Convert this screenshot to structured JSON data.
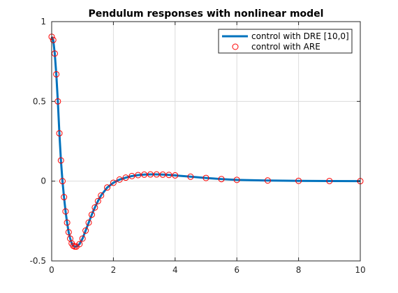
{
  "chart_data": {
    "type": "line",
    "title": "Pendulum responses with nonlinear model",
    "xlabel": "",
    "ylabel": "",
    "xlim": [
      0,
      10
    ],
    "ylim": [
      -0.5,
      1
    ],
    "xticks": [
      0,
      2,
      4,
      6,
      8,
      10
    ],
    "xtick_labels": [
      "0",
      "2",
      "4",
      "6",
      "8",
      "10"
    ],
    "yticks": [
      -0.5,
      0,
      0.5,
      1
    ],
    "ytick_labels": [
      "-0.5",
      "0",
      "0.5",
      "1"
    ],
    "grid": true,
    "legend_position": "top-right",
    "series": [
      {
        "name": "control with DRE [10,0]",
        "style": "line",
        "color": "#0072BD",
        "x": [
          0,
          0.05,
          0.1,
          0.15,
          0.2,
          0.25,
          0.3,
          0.35,
          0.4,
          0.45,
          0.5,
          0.55,
          0.6,
          0.65,
          0.7,
          0.75,
          0.8,
          0.9,
          1.0,
          1.1,
          1.2,
          1.3,
          1.4,
          1.5,
          1.6,
          1.8,
          2.0,
          2.2,
          2.4,
          2.6,
          2.8,
          3.0,
          3.2,
          3.4,
          3.6,
          3.8,
          4.0,
          4.5,
          5.0,
          5.5,
          6.0,
          7.0,
          8.0,
          9.0,
          10.0
        ],
        "y": [
          0.905,
          0.885,
          0.8,
          0.67,
          0.5,
          0.3,
          0.13,
          0.0,
          -0.1,
          -0.19,
          -0.26,
          -0.32,
          -0.36,
          -0.39,
          -0.405,
          -0.41,
          -0.41,
          -0.395,
          -0.36,
          -0.31,
          -0.26,
          -0.21,
          -0.165,
          -0.125,
          -0.09,
          -0.04,
          -0.01,
          0.01,
          0.022,
          0.032,
          0.038,
          0.041,
          0.042,
          0.042,
          0.041,
          0.039,
          0.036,
          0.028,
          0.02,
          0.013,
          0.008,
          0.004,
          0.002,
          0.001,
          0.0
        ]
      },
      {
        "name": "control with ARE",
        "style": "circle",
        "color": "#FF0000",
        "x": [
          0,
          0.05,
          0.1,
          0.15,
          0.2,
          0.25,
          0.3,
          0.35,
          0.4,
          0.45,
          0.5,
          0.55,
          0.6,
          0.65,
          0.7,
          0.75,
          0.8,
          0.9,
          1.0,
          1.1,
          1.2,
          1.3,
          1.4,
          1.5,
          1.6,
          1.8,
          2.0,
          2.2,
          2.4,
          2.6,
          2.8,
          3.0,
          3.2,
          3.4,
          3.6,
          3.8,
          4.0,
          4.5,
          5.0,
          5.5,
          6.0,
          7.0,
          8.0,
          9.0,
          10.0
        ],
        "y": [
          0.905,
          0.885,
          0.8,
          0.67,
          0.5,
          0.3,
          0.13,
          0.0,
          -0.1,
          -0.19,
          -0.26,
          -0.32,
          -0.36,
          -0.39,
          -0.405,
          -0.41,
          -0.41,
          -0.395,
          -0.36,
          -0.31,
          -0.26,
          -0.21,
          -0.165,
          -0.125,
          -0.09,
          -0.04,
          -0.01,
          0.01,
          0.022,
          0.032,
          0.038,
          0.041,
          0.042,
          0.042,
          0.041,
          0.039,
          0.036,
          0.028,
          0.02,
          0.013,
          0.008,
          0.004,
          0.002,
          0.001,
          0.0
        ]
      }
    ]
  }
}
